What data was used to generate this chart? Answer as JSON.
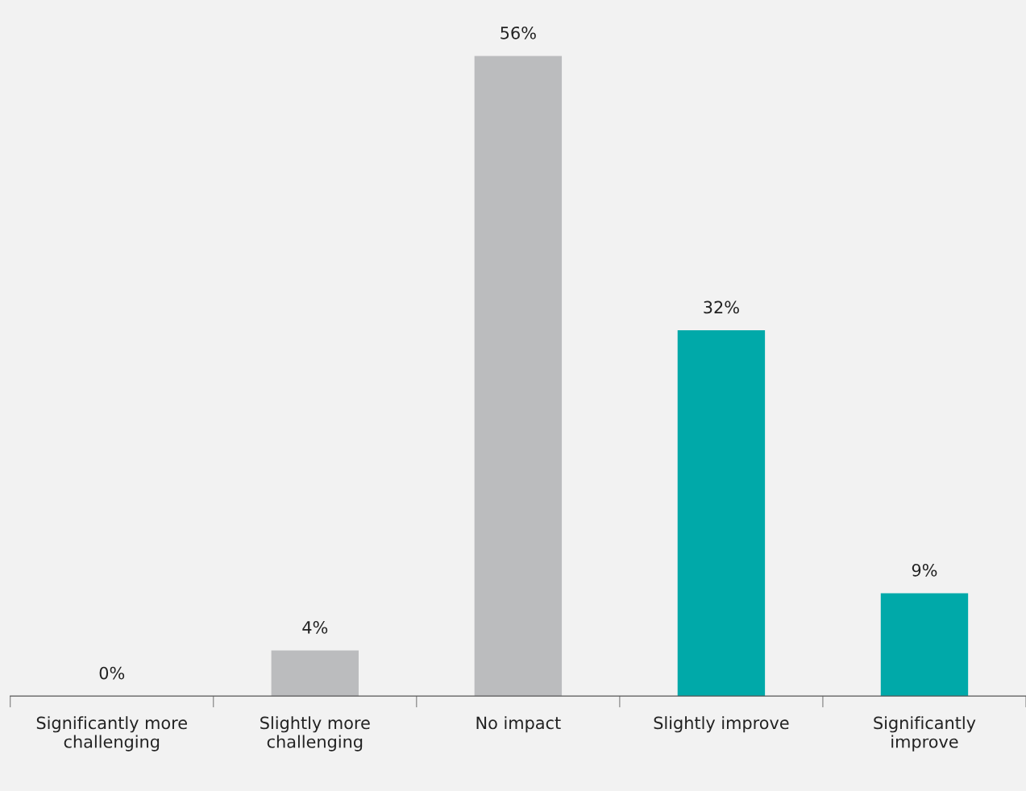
{
  "chart_data": {
    "type": "bar",
    "categories": [
      "Significantly more\nchallenging",
      "Slightly more\nchallenging",
      "No impact",
      "Slightly improve",
      "Significantly\nimprove"
    ],
    "values": [
      0,
      4,
      56,
      32,
      9
    ],
    "colors": [
      "#bbbcbe",
      "#bbbcbe",
      "#bbbcbe",
      "#00a9a9",
      "#00a9a9"
    ],
    "value_labels": [
      "0%",
      "4%",
      "56%",
      "32%",
      "9%"
    ],
    "grid": false,
    "legend": false
  }
}
